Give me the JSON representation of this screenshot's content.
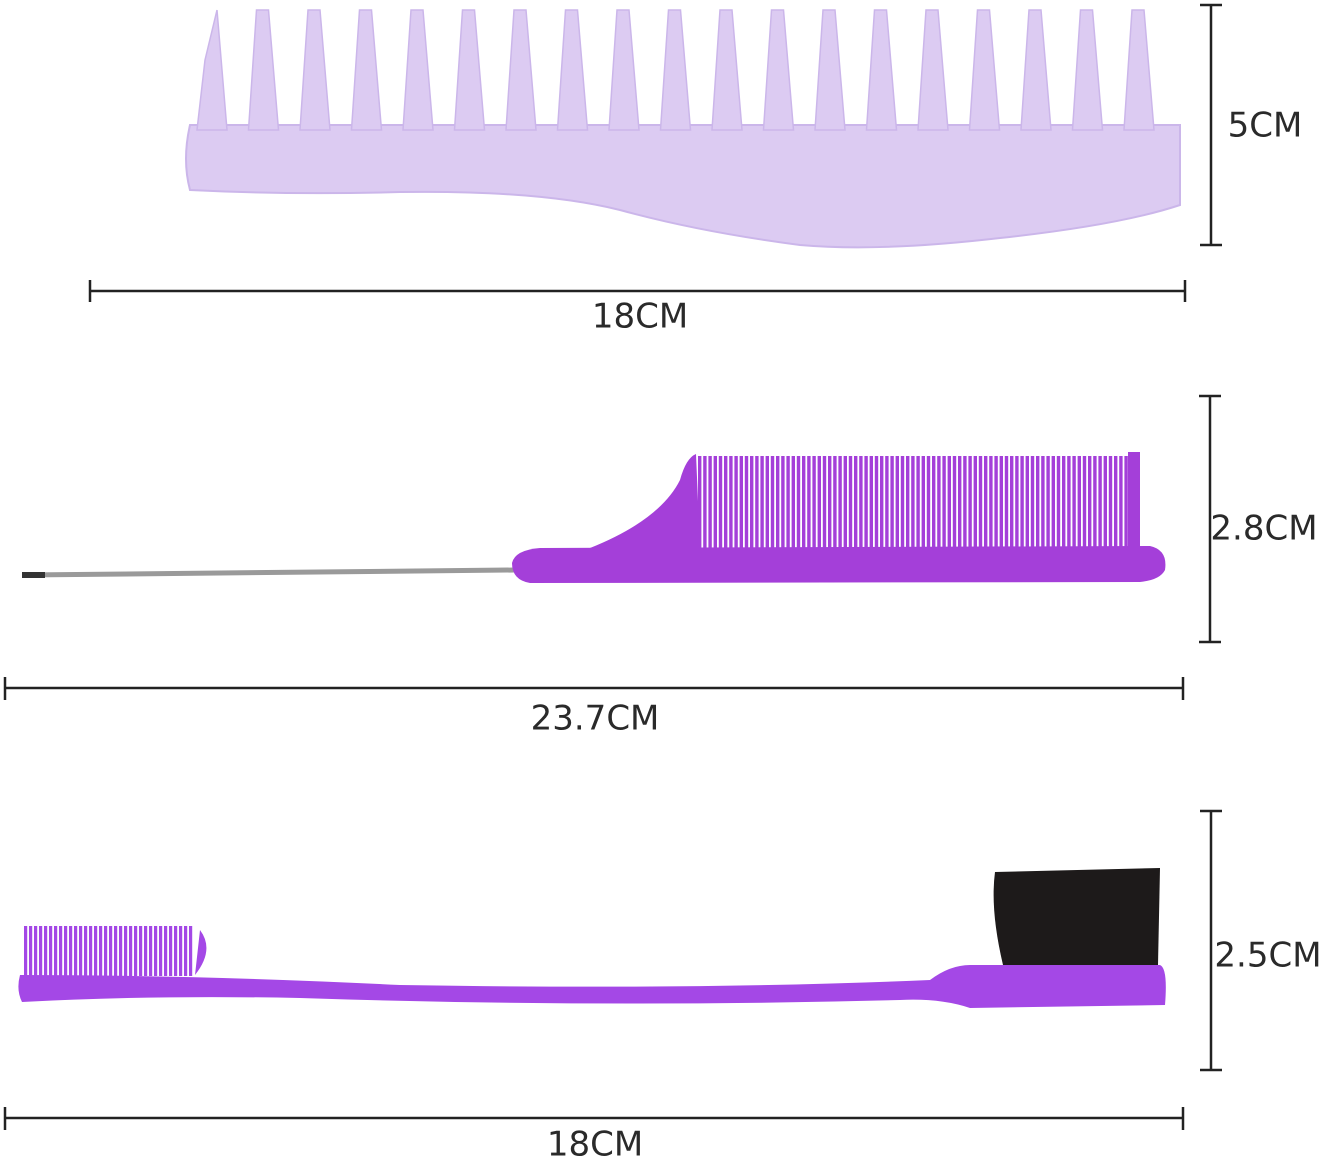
{
  "items": [
    {
      "width": "18CM",
      "height": "5CM"
    },
    {
      "width": "23.7CM",
      "height": "2.8CM"
    },
    {
      "width": "18CM",
      "height": "2.5CM"
    }
  ]
}
